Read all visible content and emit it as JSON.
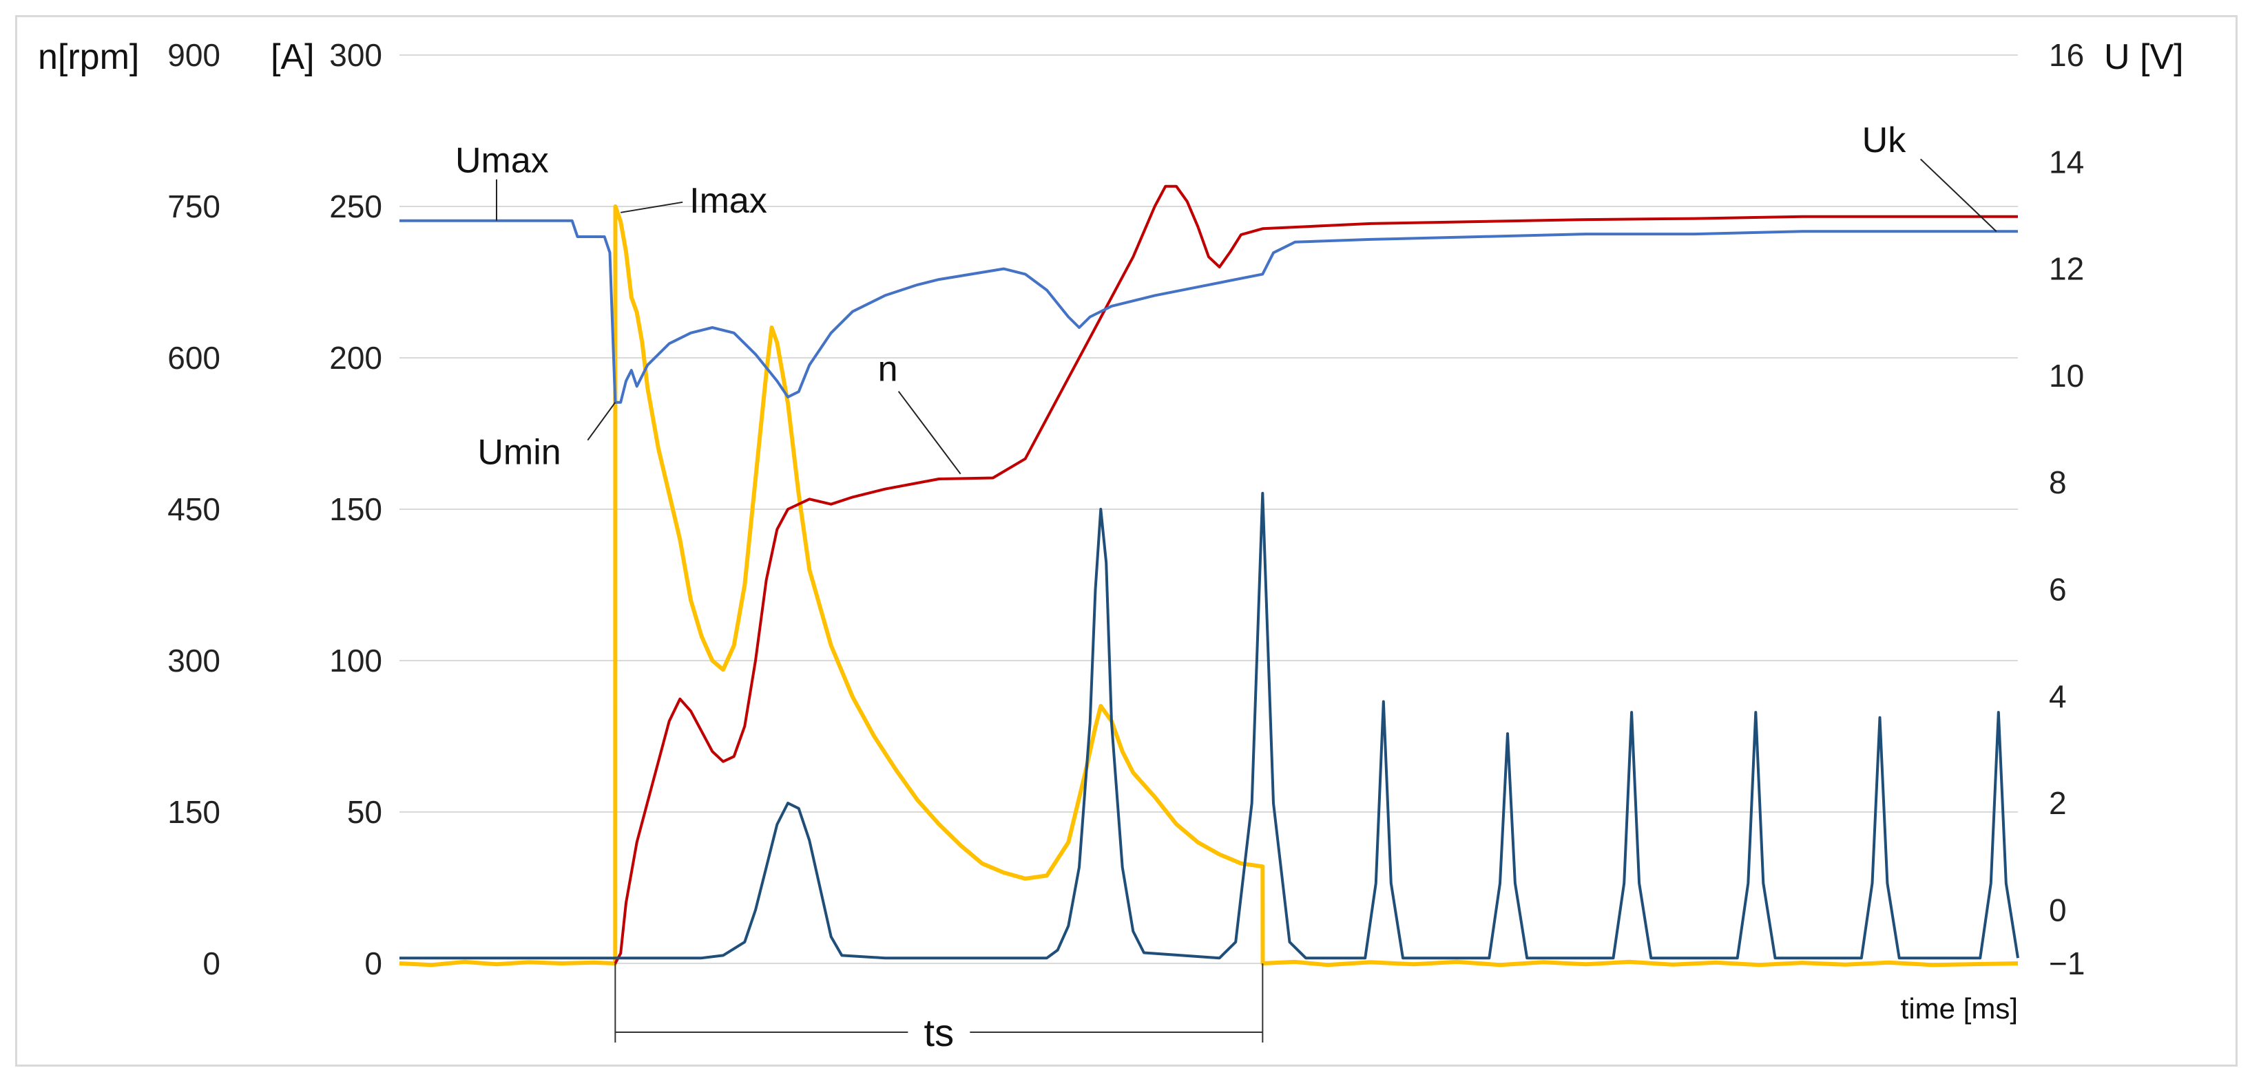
{
  "chart_data": {
    "type": "line",
    "xlabel": "time [ms]",
    "axes": {
      "n": {
        "title": "n[rpm]",
        "ticks": [
          0,
          150,
          300,
          450,
          600,
          750,
          900
        ],
        "range": [
          0,
          900
        ]
      },
      "I": {
        "title": "[A]",
        "ticks": [
          0,
          50,
          100,
          150,
          200,
          250,
          300
        ],
        "range": [
          0,
          300
        ]
      },
      "U": {
        "title": "U [V]",
        "ticks": [
          -1,
          0,
          2,
          4,
          6,
          8,
          10,
          12,
          14,
          16
        ],
        "range": [
          -1,
          16
        ]
      }
    },
    "grid": true,
    "series": [
      {
        "key": "I",
        "axis": "I",
        "color": "#ffc000",
        "points": [
          [
            0,
            0
          ],
          [
            0.03,
            -0.5
          ],
          [
            0.06,
            0.5
          ],
          [
            0.09,
            -0.3
          ],
          [
            0.12,
            0.4
          ],
          [
            0.15,
            0
          ],
          [
            0.18,
            0.3
          ],
          [
            0.2,
            0
          ],
          [
            0.2001,
            250
          ],
          [
            0.205,
            245
          ],
          [
            0.21,
            235
          ],
          [
            0.215,
            220
          ],
          [
            0.22,
            215
          ],
          [
            0.225,
            205
          ],
          [
            0.23,
            190
          ],
          [
            0.24,
            170
          ],
          [
            0.25,
            155
          ],
          [
            0.26,
            140
          ],
          [
            0.27,
            120
          ],
          [
            0.28,
            108
          ],
          [
            0.29,
            100
          ],
          [
            0.3,
            97
          ],
          [
            0.31,
            105
          ],
          [
            0.32,
            125
          ],
          [
            0.33,
            160
          ],
          [
            0.34,
            195
          ],
          [
            0.345,
            210
          ],
          [
            0.35,
            205
          ],
          [
            0.36,
            185
          ],
          [
            0.37,
            155
          ],
          [
            0.38,
            130
          ],
          [
            0.4,
            105
          ],
          [
            0.42,
            88
          ],
          [
            0.44,
            75
          ],
          [
            0.46,
            64
          ],
          [
            0.48,
            54
          ],
          [
            0.5,
            46
          ],
          [
            0.52,
            39
          ],
          [
            0.54,
            33
          ],
          [
            0.56,
            30
          ],
          [
            0.58,
            28
          ],
          [
            0.6,
            29
          ],
          [
            0.62,
            40
          ],
          [
            0.635,
            62
          ],
          [
            0.645,
            78
          ],
          [
            0.65,
            85
          ],
          [
            0.66,
            80
          ],
          [
            0.67,
            70
          ],
          [
            0.68,
            63
          ],
          [
            0.7,
            55
          ],
          [
            0.72,
            46
          ],
          [
            0.74,
            40
          ],
          [
            0.76,
            36
          ],
          [
            0.78,
            33
          ],
          [
            0.8,
            32
          ],
          [
            0.8001,
            0
          ],
          [
            0.83,
            0.5
          ],
          [
            0.86,
            -0.5
          ],
          [
            0.9,
            0.4
          ],
          [
            0.94,
            -0.3
          ],
          [
            0.98,
            0.5
          ],
          [
            1.02,
            -0.5
          ],
          [
            1.06,
            0.4
          ],
          [
            1.1,
            -0.3
          ],
          [
            1.14,
            0.5
          ],
          [
            1.18,
            -0.4
          ],
          [
            1.22,
            0.3
          ],
          [
            1.26,
            -0.5
          ],
          [
            1.3,
            0.2
          ],
          [
            1.34,
            -0.4
          ],
          [
            1.38,
            0.3
          ],
          [
            1.42,
            -0.5
          ],
          [
            1.5,
            0
          ]
        ]
      },
      {
        "key": "n",
        "axis": "n",
        "color": "#c00000",
        "points": [
          [
            0.2,
            0
          ],
          [
            0.205,
            10
          ],
          [
            0.21,
            60
          ],
          [
            0.22,
            120
          ],
          [
            0.23,
            160
          ],
          [
            0.24,
            200
          ],
          [
            0.25,
            240
          ],
          [
            0.26,
            262
          ],
          [
            0.27,
            250
          ],
          [
            0.28,
            230
          ],
          [
            0.29,
            210
          ],
          [
            0.3,
            200
          ],
          [
            0.31,
            205
          ],
          [
            0.32,
            235
          ],
          [
            0.33,
            300
          ],
          [
            0.34,
            380
          ],
          [
            0.35,
            430
          ],
          [
            0.36,
            450
          ],
          [
            0.38,
            460
          ],
          [
            0.4,
            455
          ],
          [
            0.42,
            462
          ],
          [
            0.45,
            470
          ],
          [
            0.5,
            480
          ],
          [
            0.55,
            481
          ],
          [
            0.58,
            500
          ],
          [
            0.6,
            540
          ],
          [
            0.62,
            580
          ],
          [
            0.64,
            620
          ],
          [
            0.66,
            660
          ],
          [
            0.68,
            700
          ],
          [
            0.7,
            750
          ],
          [
            0.71,
            770
          ],
          [
            0.72,
            770
          ],
          [
            0.73,
            755
          ],
          [
            0.74,
            730
          ],
          [
            0.75,
            700
          ],
          [
            0.76,
            690
          ],
          [
            0.77,
            705
          ],
          [
            0.78,
            722
          ],
          [
            0.8,
            728
          ],
          [
            0.9,
            733
          ],
          [
            1.0,
            735
          ],
          [
            1.1,
            737
          ],
          [
            1.2,
            738
          ],
          [
            1.3,
            740
          ],
          [
            1.4,
            740
          ],
          [
            1.5,
            740
          ]
        ]
      },
      {
        "key": "U",
        "axis": "U",
        "color": "#4472c4",
        "points": [
          [
            0,
            12.9
          ],
          [
            0.1,
            12.9
          ],
          [
            0.16,
            12.9
          ],
          [
            0.165,
            12.6
          ],
          [
            0.19,
            12.6
          ],
          [
            0.195,
            12.3
          ],
          [
            0.2,
            9.5
          ],
          [
            0.205,
            9.5
          ],
          [
            0.21,
            9.9
          ],
          [
            0.215,
            10.1
          ],
          [
            0.22,
            9.8
          ],
          [
            0.23,
            10.2
          ],
          [
            0.25,
            10.6
          ],
          [
            0.27,
            10.8
          ],
          [
            0.29,
            10.9
          ],
          [
            0.31,
            10.8
          ],
          [
            0.33,
            10.4
          ],
          [
            0.35,
            9.9
          ],
          [
            0.36,
            9.6
          ],
          [
            0.37,
            9.7
          ],
          [
            0.38,
            10.2
          ],
          [
            0.4,
            10.8
          ],
          [
            0.42,
            11.2
          ],
          [
            0.45,
            11.5
          ],
          [
            0.48,
            11.7
          ],
          [
            0.5,
            11.8
          ],
          [
            0.53,
            11.9
          ],
          [
            0.56,
            12.0
          ],
          [
            0.58,
            11.9
          ],
          [
            0.6,
            11.6
          ],
          [
            0.62,
            11.1
          ],
          [
            0.63,
            10.9
          ],
          [
            0.64,
            11.1
          ],
          [
            0.66,
            11.3
          ],
          [
            0.7,
            11.5
          ],
          [
            0.75,
            11.7
          ],
          [
            0.8,
            11.9
          ],
          [
            0.81,
            12.3
          ],
          [
            0.83,
            12.5
          ],
          [
            0.9,
            12.55
          ],
          [
            1.0,
            12.6
          ],
          [
            1.1,
            12.65
          ],
          [
            1.2,
            12.65
          ],
          [
            1.3,
            12.7
          ],
          [
            1.4,
            12.7
          ],
          [
            1.5,
            12.7
          ]
        ]
      },
      {
        "key": "pulses",
        "axis": "U",
        "color": "#1f4e79",
        "points": [
          [
            0,
            -0.9
          ],
          [
            0.2,
            -0.9
          ],
          [
            0.28,
            -0.9
          ],
          [
            0.3,
            -0.85
          ],
          [
            0.32,
            -0.6
          ],
          [
            0.33,
            0.0
          ],
          [
            0.34,
            0.8
          ],
          [
            0.35,
            1.6
          ],
          [
            0.36,
            2.0
          ],
          [
            0.37,
            1.9
          ],
          [
            0.38,
            1.3
          ],
          [
            0.39,
            0.4
          ],
          [
            0.4,
            -0.5
          ],
          [
            0.41,
            -0.85
          ],
          [
            0.45,
            -0.9
          ],
          [
            0.6,
            -0.9
          ],
          [
            0.61,
            -0.75
          ],
          [
            0.62,
            -0.3
          ],
          [
            0.63,
            0.8
          ],
          [
            0.64,
            3.5
          ],
          [
            0.645,
            6.0
          ],
          [
            0.65,
            7.5
          ],
          [
            0.655,
            6.5
          ],
          [
            0.66,
            3.5
          ],
          [
            0.67,
            0.8
          ],
          [
            0.68,
            -0.4
          ],
          [
            0.69,
            -0.8
          ],
          [
            0.76,
            -0.9
          ],
          [
            0.775,
            -0.6
          ],
          [
            0.79,
            2.0
          ],
          [
            0.8,
            7.8
          ],
          [
            0.81,
            2.0
          ],
          [
            0.825,
            -0.6
          ],
          [
            0.84,
            -0.9
          ],
          [
            0.895,
            -0.9
          ],
          [
            0.905,
            0.5
          ],
          [
            0.912,
            3.9
          ],
          [
            0.919,
            0.5
          ],
          [
            0.93,
            -0.9
          ],
          [
            1.01,
            -0.9
          ],
          [
            1.02,
            0.5
          ],
          [
            1.027,
            3.3
          ],
          [
            1.034,
            0.5
          ],
          [
            1.045,
            -0.9
          ],
          [
            1.125,
            -0.9
          ],
          [
            1.135,
            0.5
          ],
          [
            1.142,
            3.7
          ],
          [
            1.149,
            0.5
          ],
          [
            1.16,
            -0.9
          ],
          [
            1.24,
            -0.9
          ],
          [
            1.25,
            0.5
          ],
          [
            1.257,
            3.7
          ],
          [
            1.264,
            0.5
          ],
          [
            1.275,
            -0.9
          ],
          [
            1.355,
            -0.9
          ],
          [
            1.365,
            0.5
          ],
          [
            1.372,
            3.6
          ],
          [
            1.379,
            0.5
          ],
          [
            1.39,
            -0.9
          ],
          [
            1.465,
            -0.9
          ],
          [
            1.475,
            0.5
          ],
          [
            1.482,
            3.7
          ],
          [
            1.489,
            0.5
          ],
          [
            1.5,
            -0.9
          ]
        ]
      }
    ],
    "annotations": [
      {
        "key": "umax",
        "text": "Umax",
        "axis": "U",
        "x": 0.09,
        "y": 12.9
      },
      {
        "key": "imax",
        "text": "Imax",
        "axis": "I",
        "x": 0.205,
        "y": 248
      },
      {
        "key": "umin",
        "text": "Umin",
        "axis": "U",
        "x": 0.2,
        "y": 9.5
      },
      {
        "key": "n",
        "text": "n",
        "axis": "n",
        "x": 0.52,
        "y": 485
      },
      {
        "key": "uk",
        "text": "Uk",
        "axis": "U",
        "x": 1.48,
        "y": 12.7
      }
    ],
    "ts": {
      "label": "ts",
      "start": 0.2,
      "end": 0.8
    }
  }
}
